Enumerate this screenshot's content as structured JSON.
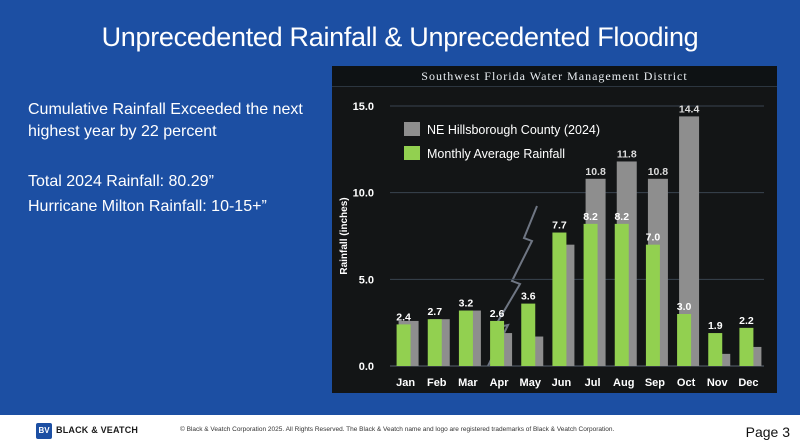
{
  "slide": {
    "title": "Unprecedented Rainfall & Unprecedented Flooding",
    "bullets": [
      "Cumulative Rainfall Exceeded the next highest year by 22 percent",
      "Total 2024 Rainfall: 80.29”",
      "Hurricane Milton Rainfall: 10-15+”"
    ]
  },
  "footer": {
    "logo": "BLACK & VEATCH",
    "copyright": "© Black & Veatch Corporation 2025. All Rights Reserved. The Black & Veatch name and logo are registered trademarks of Black & Veatch Corporation.",
    "page": "Page 3"
  },
  "chart_data": {
    "type": "bar",
    "banner": "Southwest Florida Water Management District",
    "categories": [
      "Jan",
      "Feb",
      "Mar",
      "Apr",
      "May",
      "Jun",
      "Jul",
      "Aug",
      "Sep",
      "Oct",
      "Nov",
      "Dec"
    ],
    "series": [
      {
        "name": "NE Hillsborough County (2024)",
        "color": "#8e8e8e",
        "values": [
          2.6,
          2.7,
          3.2,
          1.9,
          1.7,
          7.0,
          10.8,
          11.8,
          10.8,
          14.4,
          0.7,
          1.1
        ],
        "labels": [
          null,
          null,
          null,
          null,
          null,
          null,
          "10.8",
          "11.8",
          "10.8",
          "14.4",
          null,
          null
        ]
      },
      {
        "name": "Monthly Average Rainfall",
        "color": "#92d050",
        "values": [
          2.4,
          2.7,
          3.2,
          2.6,
          3.6,
          7.7,
          8.2,
          8.2,
          7.0,
          3.0,
          1.9,
          2.2
        ],
        "labels": [
          "2.4",
          "2.7",
          "3.2",
          "2.6",
          "3.6",
          "7.7",
          "8.2",
          "8.2",
          "7.0",
          "3.0",
          "1.9",
          "2.2"
        ]
      }
    ],
    "ylabel": "Rainfall (inches)",
    "ylim": [
      0,
      15
    ],
    "yticks": [
      "0.0",
      "5.0",
      "10.0",
      "15.0"
    ],
    "ytick_values": [
      0,
      5,
      10,
      15
    ],
    "grid": true,
    "legend": "top-left"
  }
}
